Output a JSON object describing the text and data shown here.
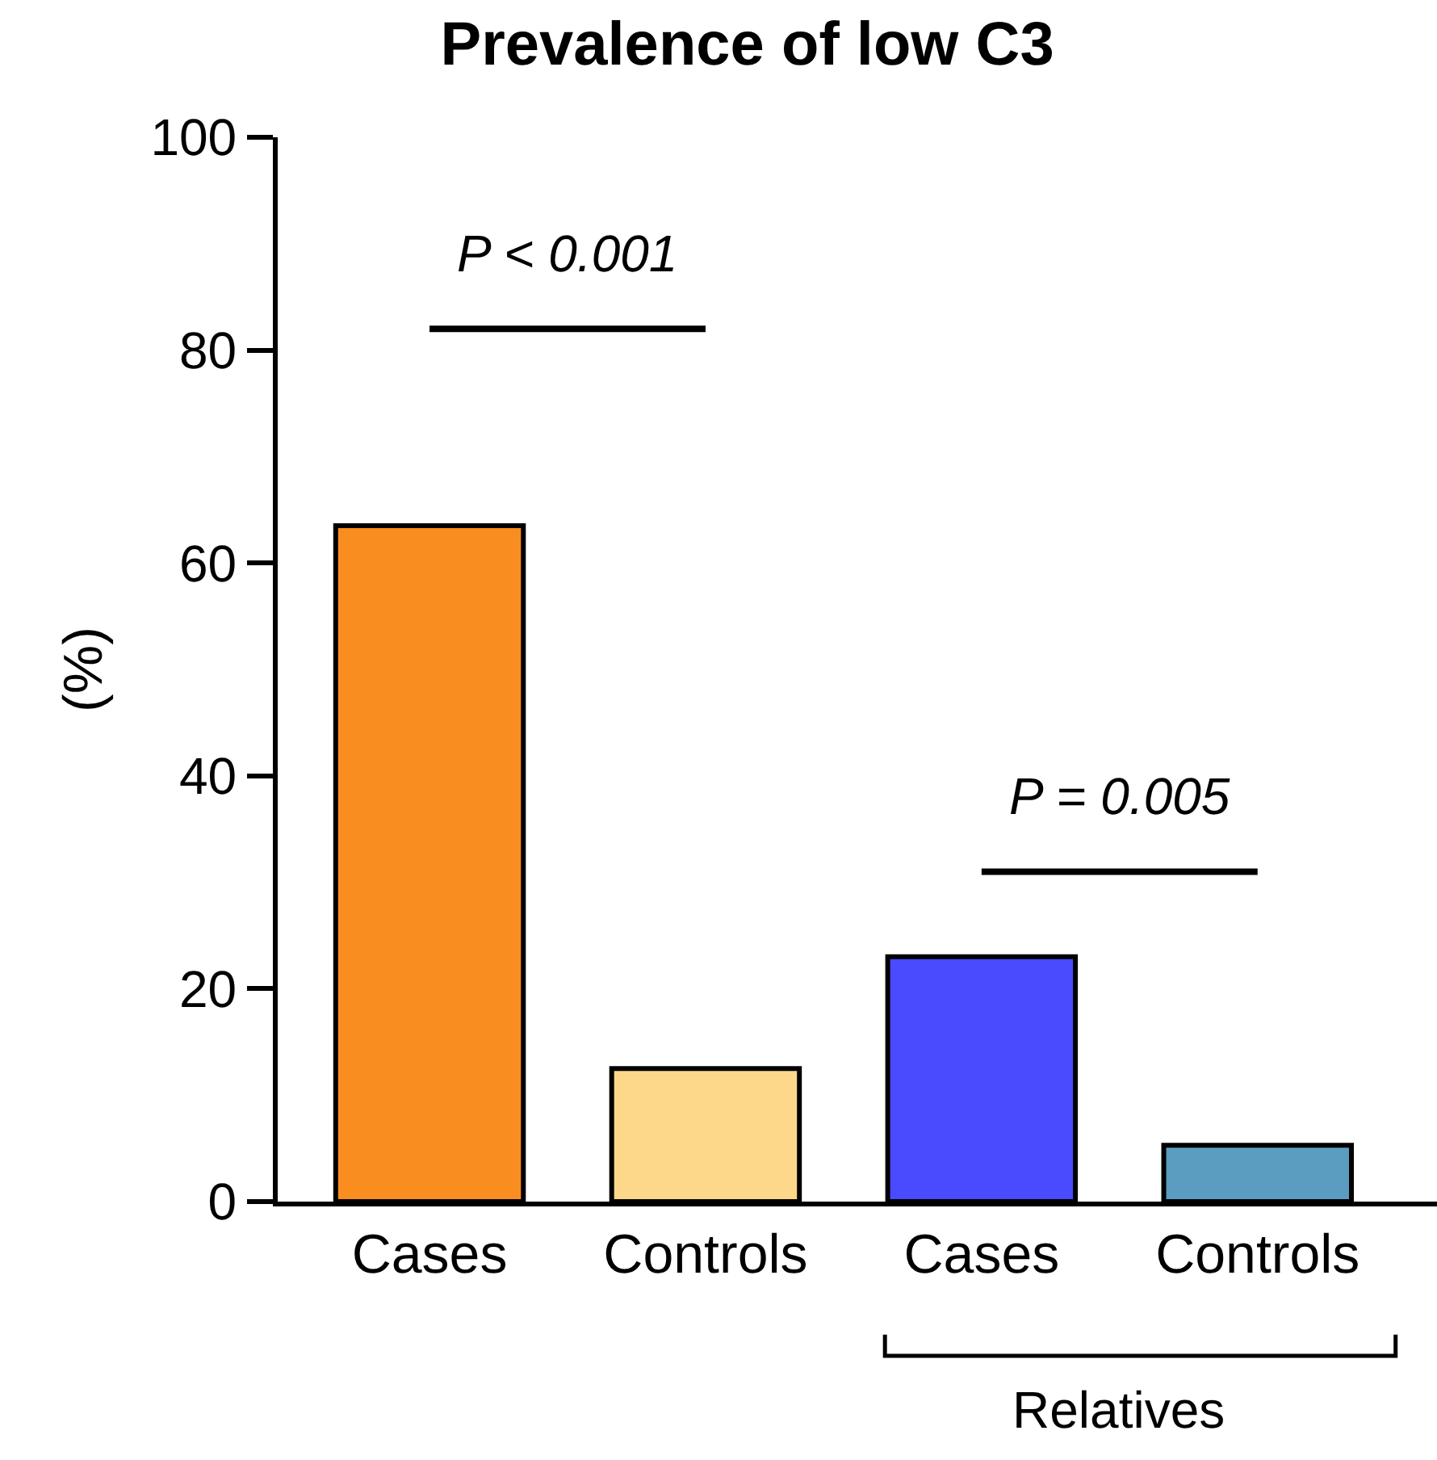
{
  "chart_data": {
    "type": "bar",
    "title": "Prevalence of low C3",
    "ylabel": "(%)",
    "categories": [
      "Cases",
      "Controls",
      "Cases",
      "Controls"
    ],
    "values": [
      63.5,
      12.5,
      23,
      5.3
    ],
    "colors": [
      "#f98d1f",
      "#fdd88a",
      "#4a4aff",
      "#5a9dc0"
    ],
    "ylim": [
      0,
      100
    ],
    "yticks": [
      0,
      20,
      40,
      60,
      80,
      100
    ],
    "grid": false,
    "annotations": [
      "P < 0.001",
      "P = 0.005",
      "Relatives"
    ]
  }
}
